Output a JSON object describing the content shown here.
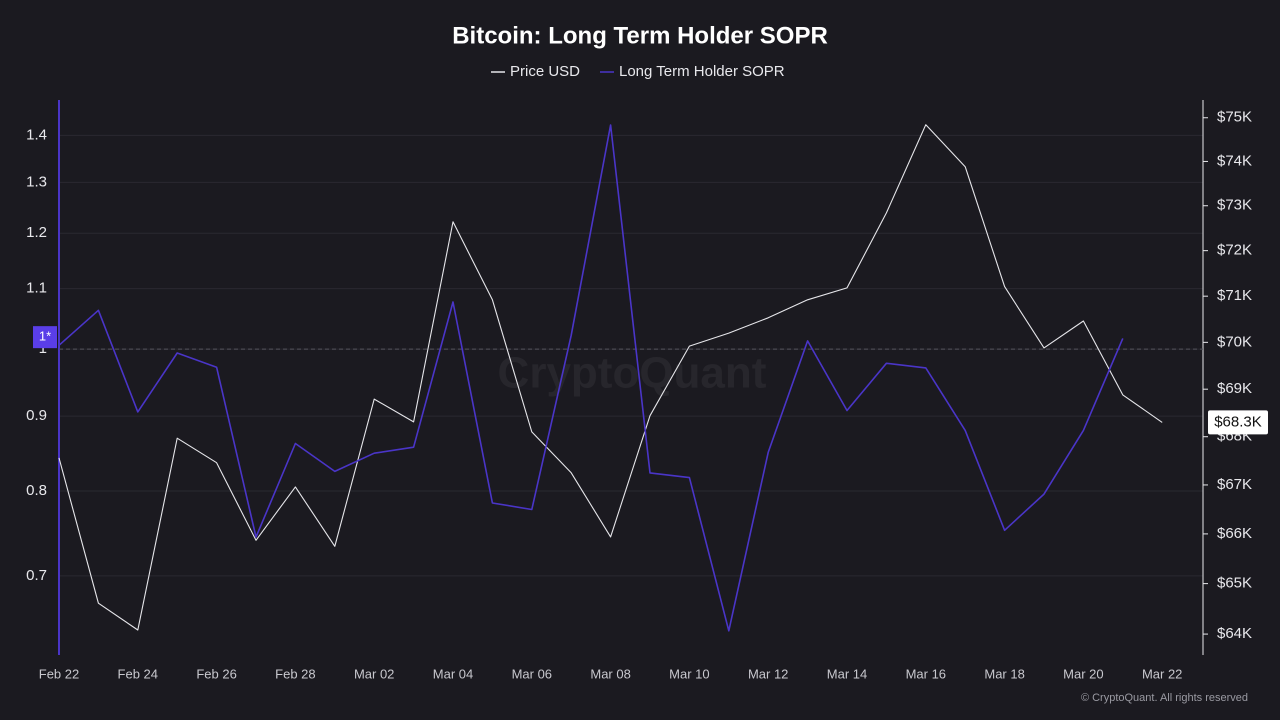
{
  "chart_data": {
    "type": "line",
    "title": "Bitcoin: Long Term Holder SOPR",
    "categories": [
      "Feb 22",
      null,
      "Feb 24",
      null,
      "Feb 26",
      null,
      "Feb 28",
      null,
      "Mar 02",
      null,
      "Mar 04",
      null,
      "Mar 06",
      null,
      "Mar 08",
      null,
      "Mar 10",
      null,
      "Mar 12",
      null,
      "Mar 14",
      null,
      "Mar 16",
      null,
      "Mar 18",
      null,
      "Mar 20",
      null,
      "Mar 22"
    ],
    "series": [
      {
        "name": "Price USD",
        "color": "#e6e6ea",
        "axis": "y2",
        "values": [
          67560,
          64610,
          64080,
          67970,
          67460,
          65870,
          66960,
          65750,
          68790,
          68310,
          72640,
          70920,
          68100,
          67250,
          65940,
          68440,
          69920,
          70200,
          70530,
          70920,
          71180,
          72840,
          74840,
          73880,
          71210,
          69880,
          70460,
          68880,
          68300
        ],
        "value_labels": [
          null,
          null,
          null,
          null,
          null,
          null,
          null,
          null,
          null,
          null,
          null,
          null,
          null,
          null,
          null,
          null,
          null,
          null,
          null,
          null,
          null,
          null,
          null,
          null,
          null,
          null,
          null,
          null,
          "$68.3K"
        ]
      },
      {
        "name": "Long Term Holder SOPR",
        "color": "#4a35c8",
        "values": [
          1.006,
          1.063,
          0.906,
          0.994,
          0.972,
          0.744,
          0.862,
          0.825,
          0.849,
          0.857,
          1.077,
          0.785,
          0.777,
          1.022,
          1.423,
          0.823,
          0.817,
          0.642,
          0.85,
          1.013,
          0.908,
          0.978,
          0.971,
          0.88,
          0.752,
          0.796,
          0.88,
          1.017,
          null
        ]
      }
    ],
    "ylim": [
      0.618,
      1.48
    ],
    "yticks": [
      0.7,
      0.8,
      0.9,
      1,
      1.1,
      1.2,
      1.3,
      1.4
    ],
    "y2lim": [
      63590,
      75410
    ],
    "y2ticks": [
      {
        "value": 64000,
        "label": "$64K"
      },
      {
        "value": 65000,
        "label": "$65K"
      },
      {
        "value": 66000,
        "label": "$66K"
      },
      {
        "value": 67000,
        "label": "$67K"
      },
      {
        "value": 68000,
        "label": "$68K"
      },
      {
        "value": 69000,
        "label": "$69K"
      },
      {
        "value": 70000,
        "label": "$70K"
      },
      {
        "value": 71000,
        "label": "$71K"
      },
      {
        "value": 72000,
        "label": "$72K"
      },
      {
        "value": 73000,
        "label": "$73K"
      },
      {
        "value": 74000,
        "label": "$74K"
      },
      {
        "value": 75000,
        "label": "$75K"
      }
    ],
    "log_scale": true,
    "grid": true,
    "reference_line": {
      "value": 1,
      "label": "1*"
    },
    "watermark": "CryptoQuant",
    "footer": "© CryptoQuant. All rights reserved"
  }
}
